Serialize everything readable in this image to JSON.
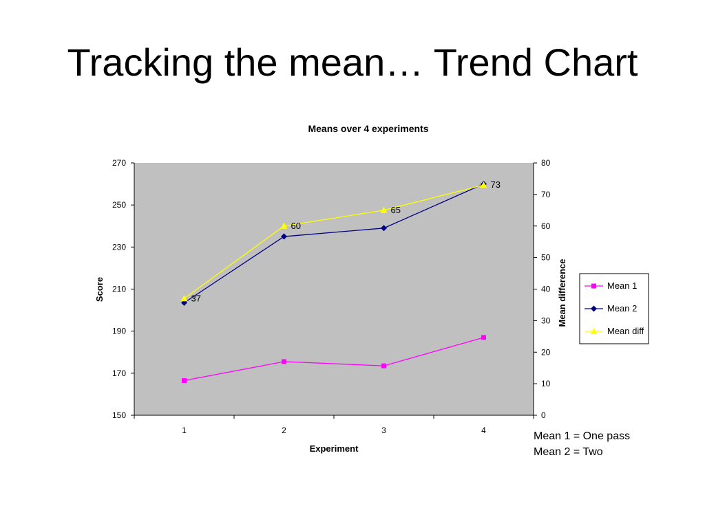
{
  "slide": {
    "title": "Tracking the mean… Trend Chart",
    "notes": [
      "Mean 1 = One pass",
      "Mean 2 = Two"
    ]
  },
  "chart_data": {
    "type": "line",
    "title": "Means over 4 experiments",
    "xlabel": "Experiment",
    "ylabel": "Score",
    "y2label": "Mean difference",
    "categories": [
      "1",
      "2",
      "3",
      "4"
    ],
    "ylim": [
      150,
      270
    ],
    "yticks": [
      150,
      170,
      190,
      210,
      230,
      250,
      270
    ],
    "y2lim": [
      0,
      80
    ],
    "y2ticks": [
      0,
      10,
      20,
      30,
      40,
      50,
      60,
      70,
      80
    ],
    "plot_background": "#c0c0c0",
    "legend_position": "right",
    "series": [
      {
        "name": "Mean 1",
        "axis": "left",
        "values": [
          166.5,
          175.5,
          173.5,
          187
        ],
        "color": "#ff00ff",
        "marker": "square",
        "labels": null
      },
      {
        "name": "Mean 2",
        "axis": "left",
        "values": [
          203.5,
          235,
          239,
          260
        ],
        "color": "#000080",
        "marker": "diamond",
        "labels": null
      },
      {
        "name": "Mean diff",
        "axis": "right",
        "values": [
          37,
          60,
          65,
          73
        ],
        "color": "#ffff00",
        "marker": "triangle",
        "labels": [
          "37",
          "60",
          "65",
          "73"
        ]
      }
    ]
  }
}
